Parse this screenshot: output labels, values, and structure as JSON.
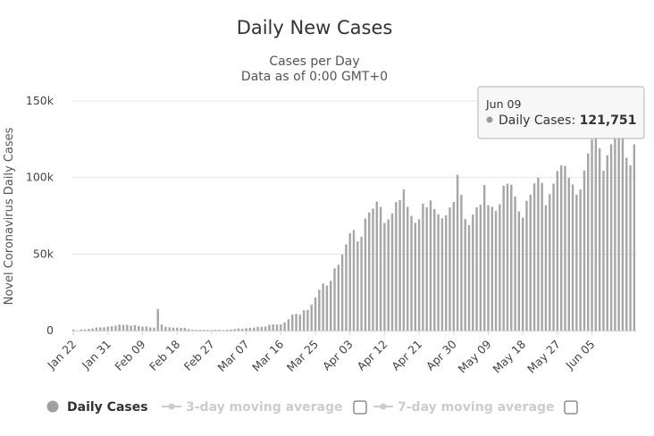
{
  "chart_data": {
    "type": "bar",
    "title": "Daily New Cases",
    "subtitle": [
      "Cases per Day",
      "Data as of 0:00 GMT+0"
    ],
    "ylabel": "Novel Coronavirus Daily Cases",
    "xlabel": "",
    "ylim": [
      0,
      150000
    ],
    "yticks": [
      0,
      50000,
      100000,
      150000
    ],
    "ytick_labels": [
      "0",
      "50k",
      "100k",
      "150k"
    ],
    "xtick_labels": [
      "Jan 22",
      "Jan 31",
      "Feb 09",
      "Feb 18",
      "Feb 27",
      "Mar 07",
      "Mar 16",
      "Mar 25",
      "Apr 03",
      "Apr 12",
      "Apr 21",
      "Apr 30",
      "May 09",
      "May 18",
      "May 27",
      "Jun 05"
    ],
    "xtick_every": 9,
    "grid": true,
    "bar_color": "#a6a6a6",
    "series": [
      {
        "name": "Daily Cases",
        "values": [
          600,
          100,
          700,
          700,
          1100,
          1400,
          2000,
          2100,
          2100,
          2600,
          2800,
          3200,
          3900,
          3700,
          3800,
          3200,
          3500,
          2900,
          2600,
          2700,
          2100,
          1900,
          14100,
          4000,
          2500,
          2100,
          1900,
          1900,
          1800,
          1800,
          1000,
          500,
          400,
          500,
          400,
          400,
          300,
          500,
          500,
          300,
          500,
          700,
          1000,
          1400,
          1200,
          1600,
          1700,
          1900,
          2500,
          2400,
          2700,
          3800,
          4000,
          3900,
          4000,
          5400,
          7400,
          10400,
          10900,
          10400,
          13300,
          13500,
          16900,
          21700,
          26700,
          30800,
          29400,
          32500,
          40700,
          43000,
          49800,
          56300,
          63600,
          65700,
          58200,
          61300,
          73200,
          77200,
          79700,
          84200,
          80800,
          70300,
          72700,
          76400,
          83900,
          85300,
          92300,
          80800,
          74900,
          70400,
          72700,
          82900,
          80500,
          85000,
          79300,
          76000,
          73300,
          75300,
          80300,
          84000,
          101800,
          88700,
          72900,
          68800,
          75800,
          80600,
          82200,
          95100,
          81800,
          80900,
          78100,
          82500,
          94700,
          95900,
          95300,
          87600,
          77800,
          73800,
          84800,
          88700,
          96200,
          99800,
          96500,
          81900,
          89100,
          96000,
          104200,
          107900,
          107500,
          99800,
          95500,
          88800,
          92100,
          104600,
          115700,
          124800,
          127200,
          119100,
          104400,
          114500,
          121800,
          127200,
          128200,
          125700,
          112900,
          108000,
          121751
        ]
      }
    ],
    "tooltip": {
      "date": "Jun 09",
      "series_name": "Daily Cases",
      "separator": ": ",
      "value": 121751,
      "value_label": "121,751"
    }
  },
  "legend": {
    "placement": "bottom-left",
    "items": [
      {
        "name": "daily-cases",
        "label": "Daily Cases",
        "active": true,
        "color": "#a0a0a0",
        "has_checkbox": false
      },
      {
        "name": "3-day-moving-average",
        "label": "3-day moving average",
        "active": false,
        "color": "#cccccc",
        "has_checkbox": true
      },
      {
        "name": "7-day-moving-average",
        "label": "7-day moving average",
        "active": false,
        "color": "#cccccc",
        "has_checkbox": true
      }
    ]
  }
}
